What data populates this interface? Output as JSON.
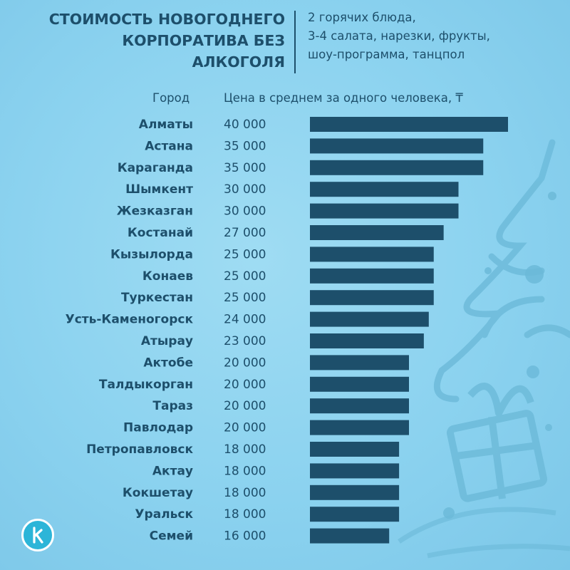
{
  "header": {
    "title_lines": [
      "СТОИМОСТЬ НОВОГОДНЕГО",
      "КОРПОРАТИВА БЕЗ",
      "АЛКОГОЛЯ"
    ],
    "subtitle_lines": [
      "2 горячих блюда,",
      "3-4 салата, нарезки, фрукты,",
      "шоу-программа, танцпол"
    ]
  },
  "column_headers": {
    "city": "Город",
    "price": "Цена в среднем за одного человека, ₸"
  },
  "colors": {
    "bar": "#1d4f6b",
    "text": "#1d4f6b",
    "background": "#8bd2ef",
    "logo": "#2cb5d8"
  },
  "chart_data": {
    "type": "bar",
    "orientation": "horizontal",
    "categories": [
      "Алматы",
      "Астана",
      "Караганда",
      "Шымкент",
      "Жезказган",
      "Костанай",
      "Кызылорда",
      "Конаев",
      "Туркестан",
      "Усть-Каменогорск",
      "Атырау",
      "Актобе",
      "Талдыкорган",
      "Тараз",
      "Павлодар",
      "Петропавловск",
      "Актау",
      "Кокшетау",
      "Уральск",
      "Семей"
    ],
    "values": [
      40000,
      35000,
      35000,
      30000,
      30000,
      27000,
      25000,
      25000,
      25000,
      24000,
      23000,
      20000,
      20000,
      20000,
      20000,
      18000,
      18000,
      18000,
      18000,
      16000
    ],
    "value_labels": [
      "40 000",
      "35 000",
      "35 000",
      "30 000",
      "30 000",
      "27 000",
      "25 000",
      "25 000",
      "25 000",
      "24 000",
      "23 000",
      "20 000",
      "20 000",
      "20 000",
      "20 000",
      "18 000",
      "18 000",
      "18 000",
      "18 000",
      "16 000"
    ],
    "xlim": [
      0,
      40000
    ],
    "grid": false,
    "legend": "none"
  },
  "logo": {
    "icon": "k-letter-icon"
  }
}
